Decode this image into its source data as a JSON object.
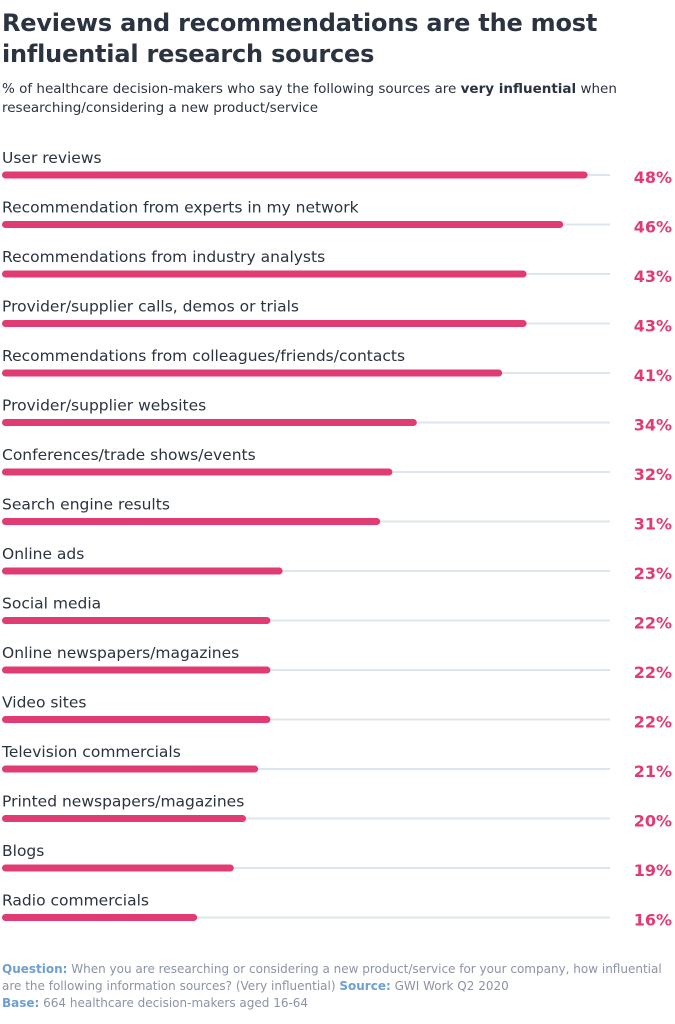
{
  "header": {
    "title": "Reviews and recommendations are the most influential research sources",
    "subtitle_pre": "% of healthcare decision-makers who say the following sources are ",
    "subtitle_bold": "very influential",
    "subtitle_post": " when researching/considering a new product/service"
  },
  "colors": {
    "bar": "#e03b72",
    "track": "#dfe5ef",
    "value_text": "#e03b72"
  },
  "chart_data": {
    "type": "bar",
    "orientation": "horizontal",
    "categories": [
      "User reviews",
      "Recommendation from experts in my network",
      "Recommendations from industry analysts",
      "Provider/supplier calls, demos or trials",
      "Recommendations from colleagues/friends/contacts",
      "Provider/supplier websites",
      "Conferences/trade shows/events",
      "Search engine results",
      "Online ads",
      "Social media",
      "Online newspapers/magazines",
      "Video sites",
      "Television commercials",
      "Printed newspapers/magazines",
      "Blogs",
      "Radio commercials"
    ],
    "values": [
      48,
      46,
      43,
      43,
      41,
      34,
      32,
      31,
      23,
      22,
      22,
      22,
      21,
      20,
      19,
      16
    ],
    "value_labels": [
      "48%",
      "46%",
      "43%",
      "43%",
      "41%",
      "34%",
      "32%",
      "31%",
      "23%",
      "22%",
      "22%",
      "22%",
      "21%",
      "20%",
      "19%",
      "16%"
    ],
    "title": "Reviews and recommendations are the most influential research sources",
    "xlim": [
      0,
      50
    ],
    "grid": false,
    "legend": "none"
  },
  "footer": {
    "question_label": "Question:",
    "question_text": " When you are researching or considering a new product/service for your company, how influential are the following information sources? (Very influential)  ",
    "source_label": "Source:",
    "source_text": " GWI Work Q2 2020",
    "base_label": "Base:",
    "base_text": " 664 healthcare decision-makers aged 16-64"
  }
}
